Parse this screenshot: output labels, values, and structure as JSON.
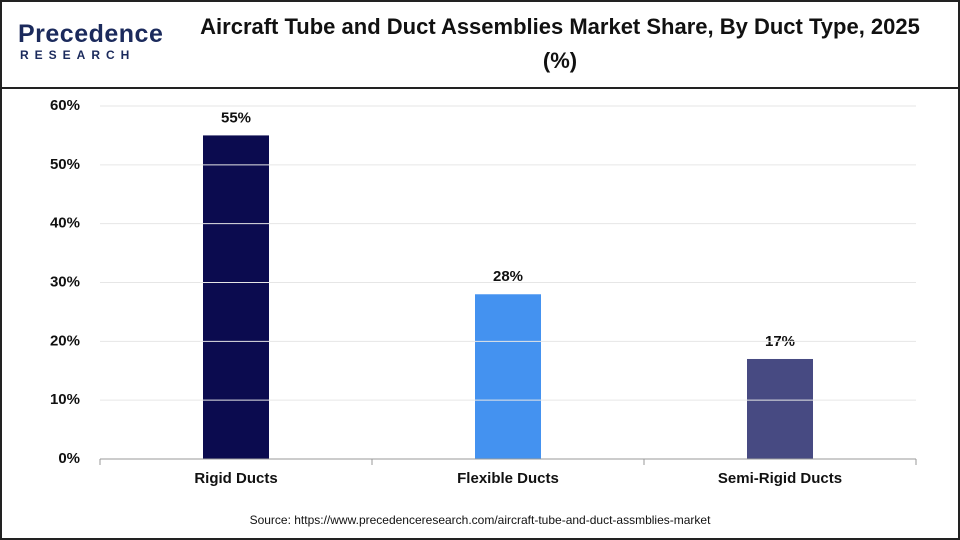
{
  "logo": {
    "name": "Precedence",
    "tagline": "RESEARCH"
  },
  "chart_data": {
    "type": "bar",
    "title": "Aircraft Tube and Duct Assemblies Market Share, By Duct Type, 2025 (%)",
    "categories": [
      "Rigid Ducts",
      "Flexible Ducts",
      "Semi-Rigid Ducts"
    ],
    "values": [
      55,
      28,
      17
    ],
    "value_labels": [
      "55%",
      "28%",
      "17%"
    ],
    "colors": [
      "#0b0b4f",
      "#4492f0",
      "#474a82"
    ],
    "ylim": [
      0,
      60
    ],
    "yticks": [
      {
        "value": 0,
        "label": "0%"
      },
      {
        "value": 10,
        "label": "10%"
      },
      {
        "value": 20,
        "label": "20%"
      },
      {
        "value": 30,
        "label": "30%"
      },
      {
        "value": 40,
        "label": "40%"
      },
      {
        "value": 50,
        "label": "50%"
      },
      {
        "value": 60,
        "label": "60%"
      }
    ],
    "grid": true,
    "source": "Source: https://www.precedenceresearch.com/aircraft-tube-and-duct-assmblies-market"
  }
}
